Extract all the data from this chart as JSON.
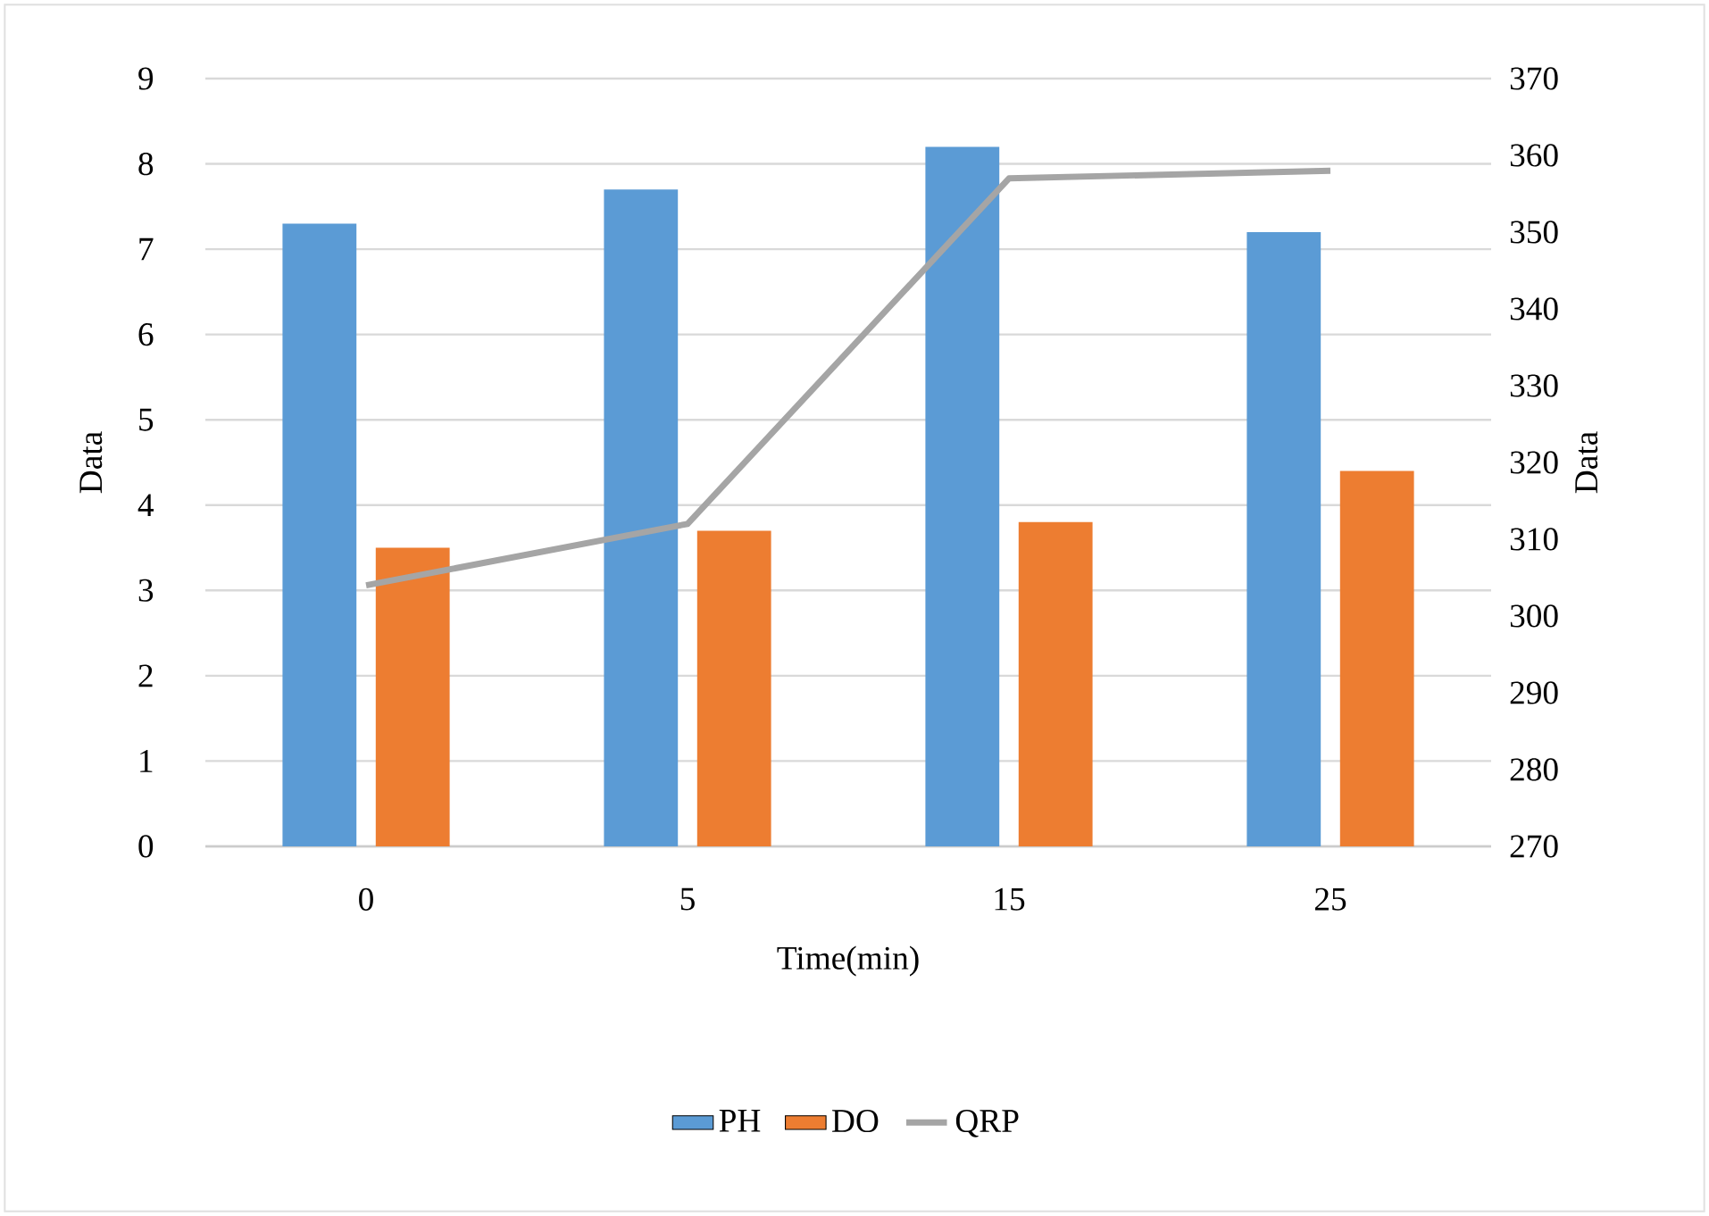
{
  "chart_data": {
    "type": "bar",
    "xlabel": "Time(min)",
    "ylabel": "Data",
    "y2label": "Data",
    "categories": [
      "0",
      "5",
      "15",
      "25"
    ],
    "series": [
      {
        "name": "PH",
        "color": "#5b9bd5",
        "values": [
          7.3,
          7.7,
          8.2,
          7.2
        ]
      },
      {
        "name": "DO",
        "color": "#ed7d31",
        "values": [
          3.5,
          3.7,
          3.8,
          4.4
        ]
      },
      {
        "name": "QRP",
        "type": "line",
        "axis": "y2",
        "color": "#a5a5a5",
        "values": [
          304,
          312,
          357,
          358
        ]
      }
    ],
    "ylim": [
      0,
      9
    ],
    "yticks": [
      0,
      1,
      2,
      3,
      4,
      5,
      6,
      7,
      8,
      9
    ],
    "y2lim": [
      270,
      370
    ],
    "y2ticks": [
      270,
      280,
      290,
      300,
      310,
      320,
      330,
      340,
      350,
      360,
      370
    ],
    "grid": "y",
    "legend": "bottom"
  }
}
